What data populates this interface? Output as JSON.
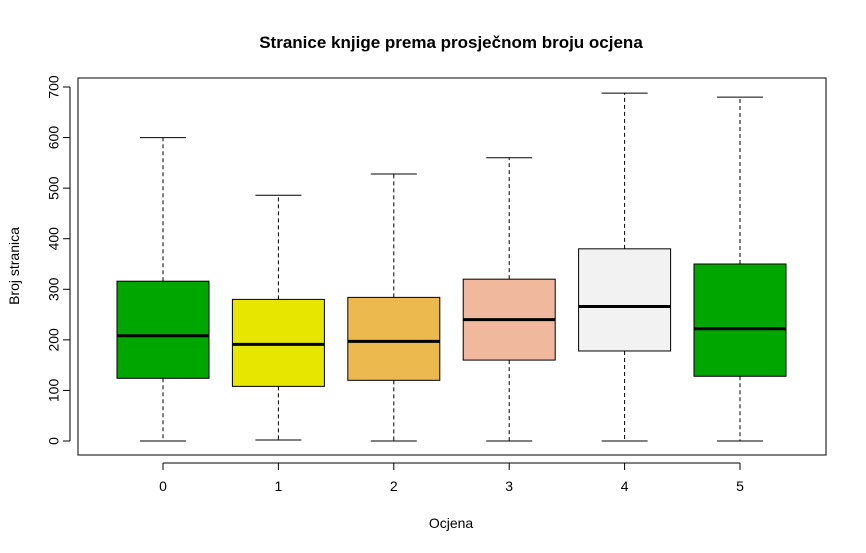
{
  "chart_data": {
    "type": "boxplot",
    "title": "Stranice knjige prema prosječnom broju ocjena",
    "xlabel": "Ocjena",
    "ylabel": "Broj stranica",
    "ylim": [
      -25,
      730
    ],
    "yticks": [
      0,
      100,
      200,
      300,
      400,
      500,
      600,
      700
    ],
    "categories": [
      "0",
      "1",
      "2",
      "3",
      "4",
      "5"
    ],
    "boxes": [
      {
        "min": 0,
        "q1": 124,
        "median": 208,
        "q3": 316,
        "max": 600,
        "color": "#00A600"
      },
      {
        "min": 2,
        "q1": 108,
        "median": 191,
        "q3": 280,
        "max": 486,
        "color": "#E6E600"
      },
      {
        "min": 0,
        "q1": 120,
        "median": 197,
        "q3": 284,
        "max": 528,
        "color": "#EBB94E"
      },
      {
        "min": 0,
        "q1": 160,
        "median": 240,
        "q3": 320,
        "max": 560,
        "color": "#F0B99E"
      },
      {
        "min": 0,
        "q1": 178,
        "median": 266,
        "q3": 380,
        "max": 688,
        "color": "#F2F2F2"
      },
      {
        "min": 0,
        "q1": 128,
        "median": 222,
        "q3": 350,
        "max": 680,
        "color": "#00A600"
      }
    ],
    "grid": false,
    "legend": "none"
  }
}
